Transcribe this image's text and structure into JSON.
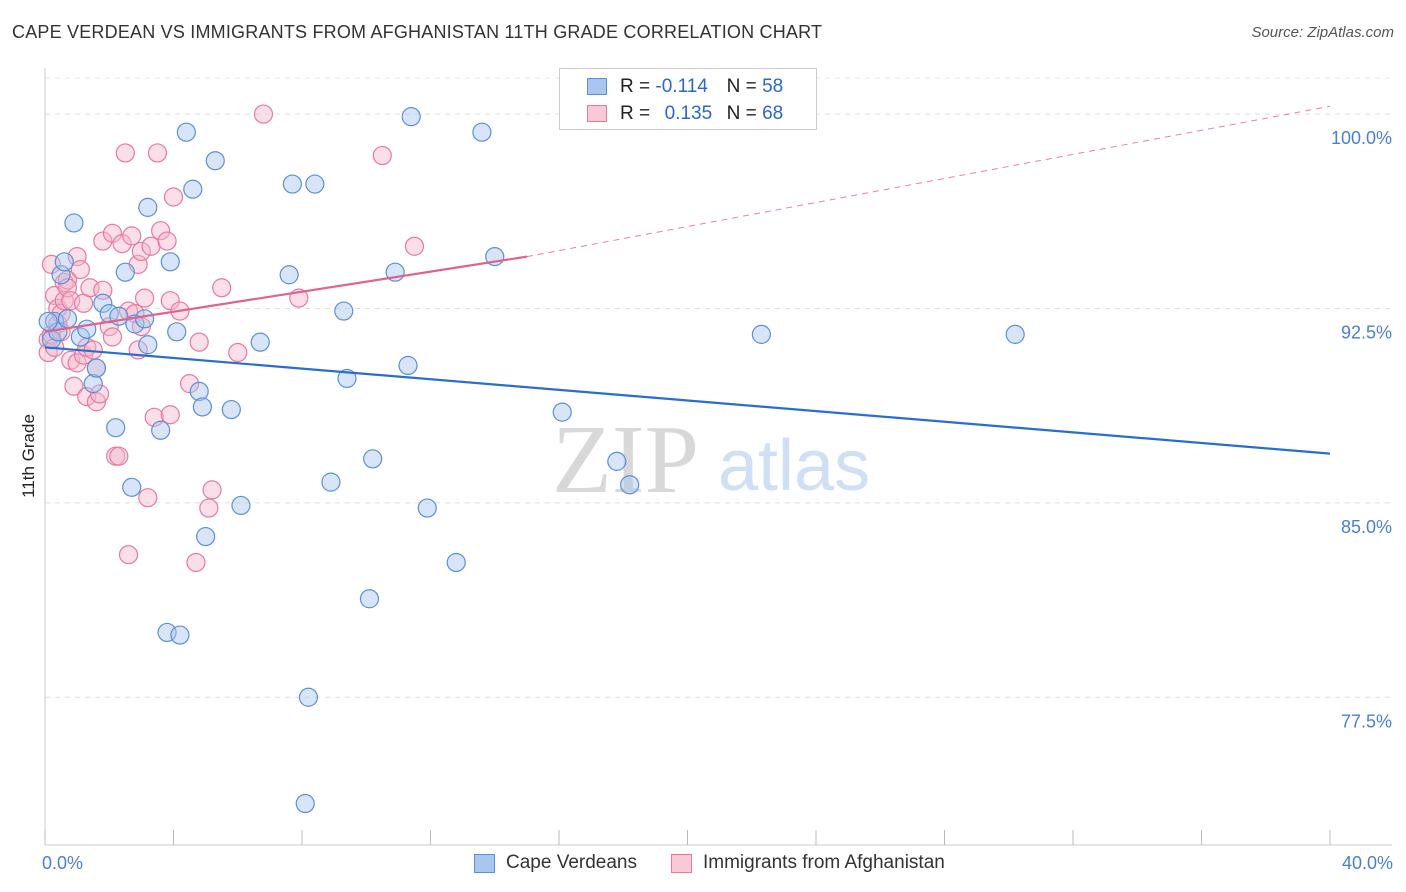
{
  "header": {
    "title": "CAPE VERDEAN VS IMMIGRANTS FROM AFGHANISTAN 11TH GRADE CORRELATION CHART",
    "source": "Source: ZipAtlas.com"
  },
  "watermark": {
    "zip": "ZIP",
    "atlas": "atlas"
  },
  "legend": {
    "rows": [
      {
        "r_label": "R =",
        "r_value": "-0.114",
        "n_label": "N =",
        "n_value": "58"
      },
      {
        "r_label": "R =",
        "r_value": "0.135",
        "n_label": "N =",
        "n_value": "68"
      }
    ]
  },
  "bottom_legend": {
    "items": [
      {
        "label": "Cape Verdeans"
      },
      {
        "label": "Immigrants from Afghanistan"
      }
    ]
  },
  "colors": {
    "blue_fill": "#a9c6f0",
    "blue_stroke": "#5b8fd9",
    "blue_line": "#2a6dd1",
    "pink_fill": "#f5b8cc",
    "pink_stroke": "#e8799d",
    "pink_line": "#e0628d",
    "tick_label": "#4a7fd0"
  },
  "chart_data": {
    "type": "scatter",
    "title": "CAPE VERDEAN VS IMMIGRANTS FROM AFGHANISTAN 11TH GRADE CORRELATION CHART",
    "xlabel": "",
    "ylabel": "11th Grade",
    "xlim": [
      0,
      40
    ],
    "ylim": [
      71.8,
      101.7
    ],
    "x_tick_labels": [
      "0.0%",
      "40.0%"
    ],
    "y_ticks": [
      100.0,
      92.5,
      85.0,
      77.5
    ],
    "y_tick_labels": [
      "100.0%",
      "92.5%",
      "85.0%",
      "77.5%"
    ],
    "grid": true,
    "series": [
      {
        "name": "Cape Verdeans",
        "r": -0.114,
        "n": 58,
        "trend": {
          "x1": 0.0,
          "y1": 91.0,
          "x2": 40.0,
          "y2": 86.9
        },
        "points": [
          [
            0.2,
            91.3
          ],
          [
            0.3,
            92.0
          ],
          [
            0.4,
            91.6
          ],
          [
            0.5,
            93.8
          ],
          [
            0.6,
            94.3
          ],
          [
            0.7,
            92.1
          ],
          [
            0.9,
            95.8
          ],
          [
            1.1,
            91.4
          ],
          [
            1.3,
            91.7
          ],
          [
            1.5,
            89.6
          ],
          [
            1.6,
            90.2
          ],
          [
            1.8,
            92.7
          ],
          [
            2.0,
            92.3
          ],
          [
            2.2,
            87.9
          ],
          [
            2.3,
            92.2
          ],
          [
            2.5,
            93.9
          ],
          [
            2.7,
            85.6
          ],
          [
            2.8,
            91.9
          ],
          [
            3.1,
            92.1
          ],
          [
            3.2,
            96.4
          ],
          [
            3.2,
            91.1
          ],
          [
            3.6,
            87.8
          ],
          [
            3.8,
            80.0
          ],
          [
            3.9,
            94.3
          ],
          [
            4.1,
            91.6
          ],
          [
            4.2,
            79.9
          ],
          [
            4.4,
            99.3
          ],
          [
            4.6,
            97.1
          ],
          [
            4.8,
            89.3
          ],
          [
            4.9,
            88.7
          ],
          [
            5.0,
            83.7
          ],
          [
            5.3,
            98.2
          ],
          [
            5.8,
            88.6
          ],
          [
            6.1,
            84.9
          ],
          [
            6.7,
            91.2
          ],
          [
            7.6,
            93.8
          ],
          [
            7.7,
            97.3
          ],
          [
            8.2,
            77.5
          ],
          [
            8.1,
            73.4
          ],
          [
            8.4,
            97.3
          ],
          [
            8.9,
            85.8
          ],
          [
            9.3,
            92.4
          ],
          [
            9.4,
            89.8
          ],
          [
            10.1,
            81.3
          ],
          [
            10.2,
            86.7
          ],
          [
            10.9,
            93.9
          ],
          [
            11.3,
            90.3
          ],
          [
            11.4,
            99.9
          ],
          [
            11.9,
            84.8
          ],
          [
            12.8,
            82.7
          ],
          [
            13.6,
            99.3
          ],
          [
            14.0,
            94.5
          ],
          [
            16.1,
            88.5
          ],
          [
            17.8,
            86.6
          ],
          [
            18.2,
            85.7
          ],
          [
            22.3,
            91.5
          ],
          [
            30.2,
            91.5
          ],
          [
            0.1,
            92.0
          ]
        ]
      },
      {
        "name": "Immigrants from Afghanistan",
        "r": 0.135,
        "n": 68,
        "trend": {
          "x1": 0.0,
          "y1": 91.6,
          "x2": 15.0,
          "y2": 94.5
        },
        "trend_dashed": {
          "x1": 15.0,
          "y1": 94.5,
          "x2": 40.0,
          "y2": 100.3
        },
        "points": [
          [
            0.1,
            91.3
          ],
          [
            0.1,
            90.8
          ],
          [
            0.2,
            91.5
          ],
          [
            0.2,
            94.2
          ],
          [
            0.3,
            91.0
          ],
          [
            0.3,
            93.0
          ],
          [
            0.4,
            92.5
          ],
          [
            0.4,
            91.9
          ],
          [
            0.5,
            92.3
          ],
          [
            0.5,
            91.6
          ],
          [
            0.6,
            93.5
          ],
          [
            0.6,
            92.8
          ],
          [
            0.7,
            93.6
          ],
          [
            0.7,
            93.3
          ],
          [
            0.8,
            92.8
          ],
          [
            0.8,
            90.5
          ],
          [
            0.9,
            89.5
          ],
          [
            1.0,
            94.5
          ],
          [
            1.0,
            90.4
          ],
          [
            1.1,
            94.0
          ],
          [
            1.2,
            92.7
          ],
          [
            1.2,
            90.7
          ],
          [
            1.3,
            89.1
          ],
          [
            1.3,
            91.0
          ],
          [
            1.4,
            93.3
          ],
          [
            1.5,
            90.9
          ],
          [
            1.6,
            88.9
          ],
          [
            1.6,
            90.2
          ],
          [
            1.7,
            89.2
          ],
          [
            1.8,
            93.2
          ],
          [
            1.8,
            95.1
          ],
          [
            2.0,
            91.8
          ],
          [
            2.1,
            91.4
          ],
          [
            2.1,
            95.4
          ],
          [
            2.2,
            86.8
          ],
          [
            2.3,
            86.8
          ],
          [
            2.4,
            95.0
          ],
          [
            2.5,
            98.5
          ],
          [
            2.6,
            92.4
          ],
          [
            2.6,
            83.0
          ],
          [
            2.7,
            95.3
          ],
          [
            2.8,
            92.3
          ],
          [
            2.9,
            94.2
          ],
          [
            3.0,
            94.7
          ],
          [
            3.0,
            91.8
          ],
          [
            3.1,
            92.9
          ],
          [
            3.2,
            85.2
          ],
          [
            3.3,
            94.9
          ],
          [
            3.4,
            88.3
          ],
          [
            3.5,
            98.5
          ],
          [
            3.6,
            95.5
          ],
          [
            3.8,
            95.1
          ],
          [
            3.9,
            88.4
          ],
          [
            3.9,
            92.8
          ],
          [
            4.0,
            96.8
          ],
          [
            4.2,
            92.4
          ],
          [
            4.5,
            89.6
          ],
          [
            4.7,
            82.7
          ],
          [
            4.8,
            91.2
          ],
          [
            5.1,
            84.8
          ],
          [
            5.2,
            85.5
          ],
          [
            5.5,
            93.3
          ],
          [
            6.0,
            90.8
          ],
          [
            6.8,
            100.0
          ],
          [
            7.9,
            92.9
          ],
          [
            10.5,
            98.4
          ],
          [
            11.5,
            94.9
          ],
          [
            2.9,
            90.9
          ]
        ]
      }
    ]
  }
}
